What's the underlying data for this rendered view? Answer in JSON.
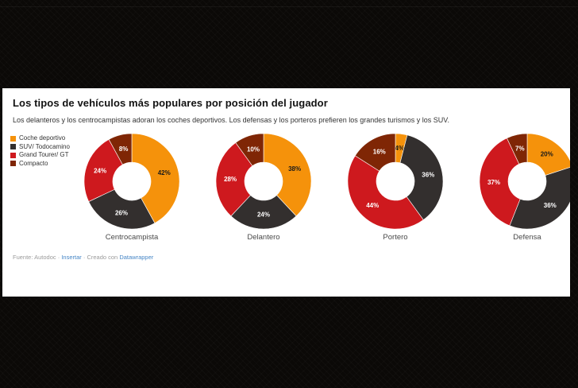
{
  "page": {
    "title": "Los tipos de vehículos más populares por posición del jugador",
    "subtitle": "Los delanteros y los centrocampistas adoran los coches deportivos. Los defensas y los porteros prefieren los grandes turismos y los SUV.",
    "footer": {
      "source_text": "Fuente: Autodoc",
      "separator": "·",
      "embed_link": "Insertar",
      "credit_prefix": "Creado con",
      "credit_link": "Datawrapper"
    }
  },
  "colors": {
    "panel_background": "#ffffff",
    "page_background": "#0b0907",
    "title": "#121212",
    "subtitle": "#333333",
    "caption": "#494949",
    "footer_text": "#9b9b9b",
    "footer_link": "#4686c6",
    "slice_separator": "#ffffff"
  },
  "chart_data": {
    "type": "pie",
    "variant": "donut",
    "unit": "%",
    "legend_position": "top-left",
    "categories": [
      "Coche deportivo",
      "SUV/ Todocamino",
      "Grand Tourer/ GT",
      "Compacto"
    ],
    "series_colors": [
      "#f5920b",
      "#332f2e",
      "#ce191e",
      "#7f2605"
    ],
    "value_label_colors": [
      "#1a1a1a",
      "#ffffff",
      "#ffffff",
      "#ffffff"
    ],
    "charts": [
      {
        "label": "Centrocampista",
        "values": [
          42,
          26,
          24,
          8
        ]
      },
      {
        "label": "Delantero",
        "values": [
          38,
          24,
          28,
          10
        ]
      },
      {
        "label": "Portero",
        "values": [
          4,
          36,
          44,
          16
        ]
      },
      {
        "label": "Defensa",
        "values": [
          20,
          36,
          37,
          7
        ]
      }
    ],
    "geometry": {
      "outer_radius": 60,
      "inner_radius": 24,
      "label_radius": 42,
      "size": 122
    }
  }
}
